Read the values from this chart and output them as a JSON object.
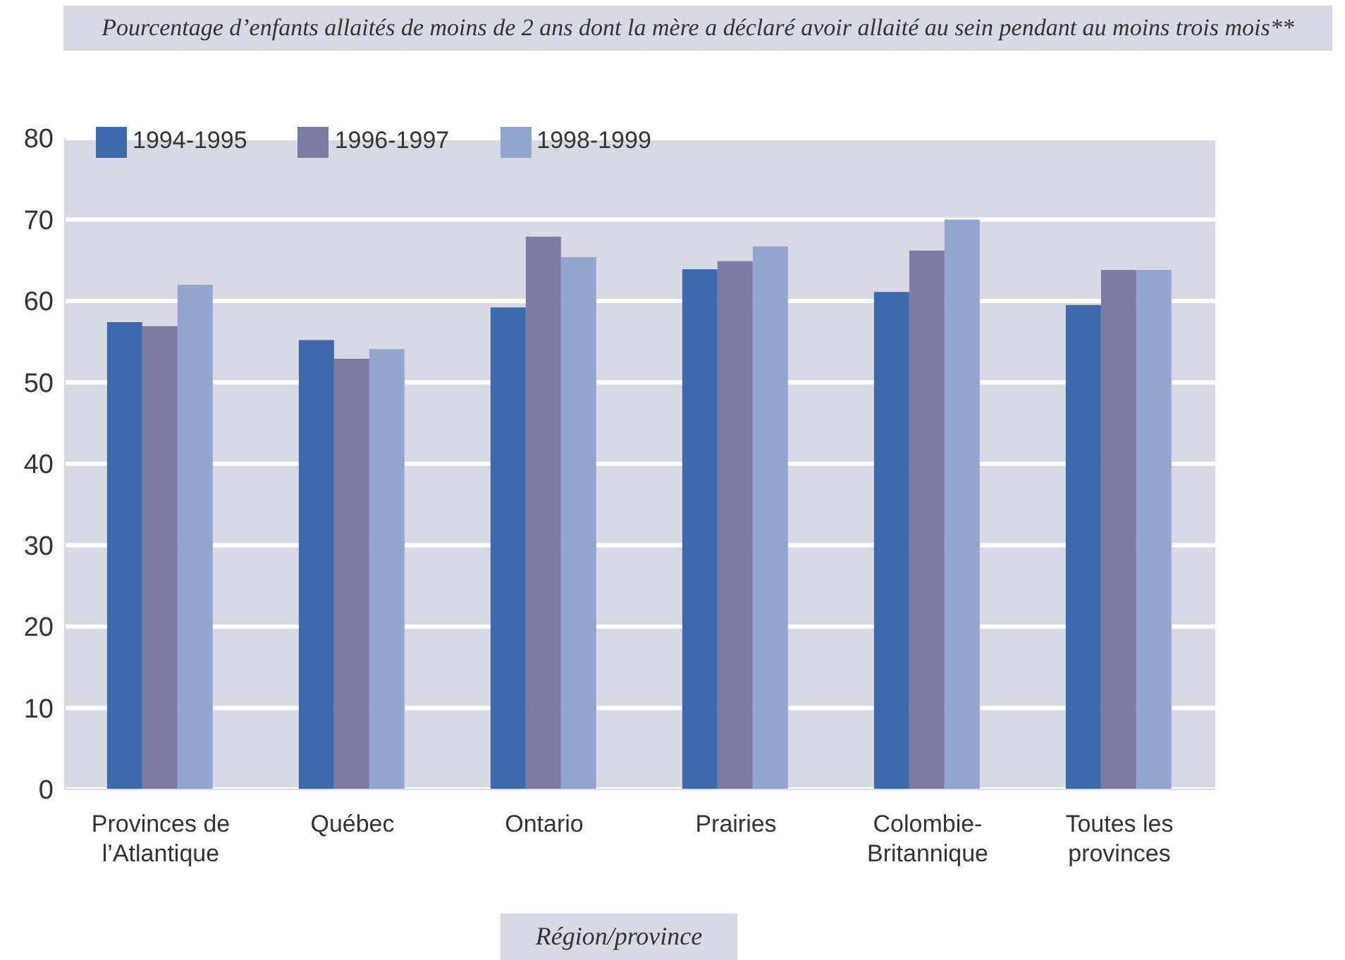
{
  "chart_data": {
    "type": "bar",
    "title": "Pourcentage d’enfants allaités de moins de 2 ans dont la mère a déclaré avoir allaité au sein pendant au moins trois mois**",
    "xlabel": "Région/province",
    "categories": [
      "Provinces de l’Atlantique",
      "Québec",
      "Ontario",
      "Prairies",
      "Colombie-Britannique",
      "Toutes les provinces"
    ],
    "series": [
      {
        "name": "1994-1995",
        "color": "#3d69ad",
        "values": [
          57.4,
          55.2,
          59.2,
          63.9,
          61.1,
          59.5
        ]
      },
      {
        "name": "1996-1997",
        "color": "#7b7ba3",
        "values": [
          56.9,
          52.9,
          67.9,
          64.9,
          66.2,
          63.8
        ]
      },
      {
        "name": "1998-1999",
        "color": "#92a5d0",
        "values": [
          62.0,
          54.1,
          65.4,
          66.7,
          70.0,
          63.8
        ]
      }
    ],
    "ylim": [
      0,
      80
    ],
    "yticks": [
      0,
      10,
      20,
      30,
      40,
      50,
      60,
      70,
      80
    ],
    "grid": "y",
    "legend": "top left"
  }
}
